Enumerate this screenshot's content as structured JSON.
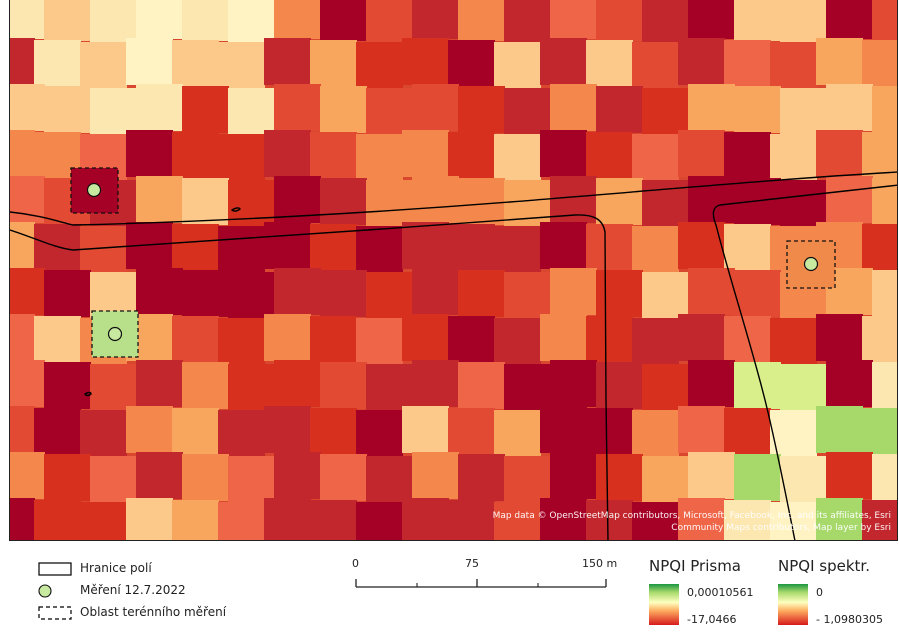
{
  "map": {
    "attribution": "Map data © OpenStreetMap contributors, Microsoft, Facebook, Inc. and its affiliates, Esri Community Maps contributors, Map layer by Esri"
  },
  "legend": {
    "field_boundary_label": "Hranice polí",
    "measurement_label": "Měření 12.7.2022",
    "field_area_label": "Oblast terénního měření"
  },
  "scalebar": {
    "labels": [
      "0",
      "75",
      "150 m"
    ]
  },
  "ramps": [
    {
      "title": "NPQI Prisma",
      "max": "0,00010561",
      "min": "-17,0466"
    },
    {
      "title": "NPQI spektr.",
      "max": "0",
      "min": "- 1,0980305"
    }
  ],
  "colors": {
    "ramp": [
      "#1a9641",
      "#a6d96a",
      "#ffffbf",
      "#fdae61",
      "#d7191c"
    ],
    "dark_red": "#a50026",
    "point_fill": "#c7eaa0",
    "boundary": "#000000"
  }
}
